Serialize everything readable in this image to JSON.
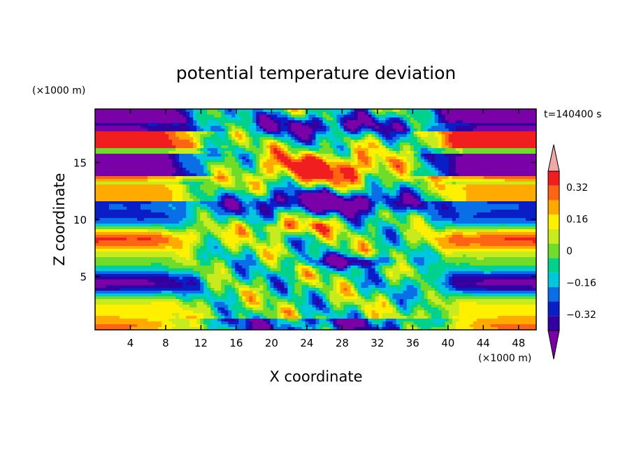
{
  "chart_data": {
    "type": "heatmap",
    "title": "potential temperature deviation",
    "xlabel": "X coordinate",
    "ylabel": "Z coordinate",
    "x_unit": "(×1000 m)",
    "y_unit": "(×1000 m)",
    "time_label": "t=140400 s",
    "xlim": [
      0,
      50
    ],
    "ylim": [
      0.3,
      19.7
    ],
    "x_ticks": [
      "4",
      "8",
      "12",
      "16",
      "20",
      "24",
      "28",
      "32",
      "36",
      "40",
      "44",
      "48"
    ],
    "y_ticks": [
      "5",
      "10",
      "15"
    ],
    "colorbar": {
      "levels": [
        -0.4,
        -0.32,
        -0.24,
        -0.16,
        -0.08,
        0,
        0.08,
        0.16,
        0.24,
        0.32,
        0.4
      ],
      "tick_labels": [
        "0.32",
        "0.16",
        "0",
        "−0.16",
        "−0.32"
      ],
      "colors": [
        "#7a00a8",
        "#3200a0",
        "#0a1ec8",
        "#0a6ee6",
        "#00c8dc",
        "#00d28c",
        "#6edc28",
        "#c8eb1e",
        "#fff000",
        "#ffaa00",
        "#ff6414",
        "#f01e1e",
        "#f4a7a7"
      ]
    }
  }
}
